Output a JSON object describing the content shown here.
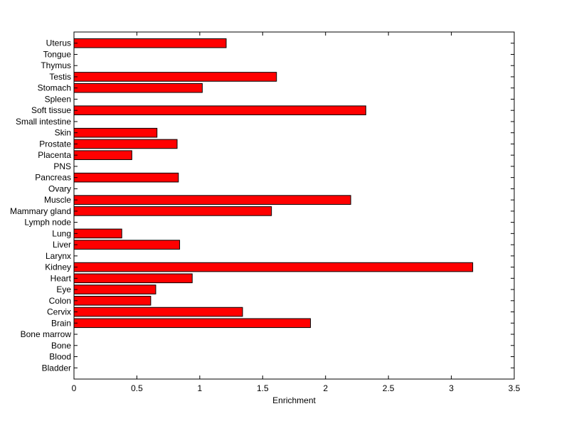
{
  "chart_data": {
    "type": "bar",
    "orientation": "horizontal",
    "title": "",
    "xlabel": "Enrichment",
    "ylabel": "",
    "xlim": [
      0,
      3.5
    ],
    "xticks": [
      0,
      0.5,
      1,
      1.5,
      2,
      2.5,
      3,
      3.5
    ],
    "xtick_labels": [
      "0",
      "0.5",
      "1",
      "1.5",
      "2",
      "2.5",
      "3",
      "3.5"
    ],
    "grid": false,
    "bar_color": "#ff0000",
    "bar_edge_color": "#000000",
    "categories": [
      "Bladder",
      "Blood",
      "Bone",
      "Bone marrow",
      "Brain",
      "Cervix",
      "Colon",
      "Eye",
      "Heart",
      "Kidney",
      "Larynx",
      "Liver",
      "Lung",
      "Lymph node",
      "Mammary gland",
      "Muscle",
      "Ovary",
      "Pancreas",
      "PNS",
      "Placenta",
      "Prostate",
      "Skin",
      "Small intestine",
      "Soft tissue",
      "Spleen",
      "Stomach",
      "Testis",
      "Thymus",
      "Tongue",
      "Uterus"
    ],
    "values": [
      0,
      0,
      0,
      0,
      1.88,
      1.34,
      0.61,
      0.65,
      0.94,
      3.17,
      0,
      0.84,
      0.38,
      0,
      1.57,
      2.2,
      0,
      0.83,
      0,
      0.46,
      0.82,
      0.66,
      0,
      2.32,
      0,
      1.02,
      1.61,
      0,
      0,
      1.21
    ]
  }
}
